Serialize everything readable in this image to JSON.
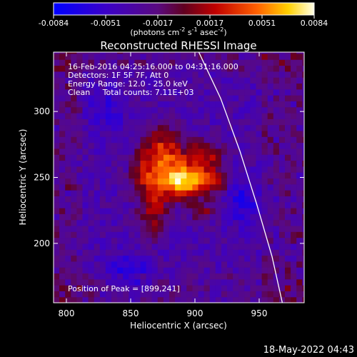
{
  "chart_data": {
    "type": "heatmap",
    "title": "Reconstructed RHESSI Image",
    "xlabel": "Heliocentric X (arcsec)",
    "ylabel": "Heliocentric Y (arcsec)",
    "xlim": [
      790,
      985
    ],
    "ylim": [
      155,
      345
    ],
    "xticks": [
      800,
      850,
      900,
      950
    ],
    "yticks": [
      200,
      250,
      300
    ],
    "colorbar": {
      "ticks": [
        "-0.0084",
        "-0.0051",
        "-0.0017",
        "0.0017",
        "0.0051",
        "0.0084"
      ],
      "unit_base": "(photons cm",
      "unit_exp1": "-2",
      "unit_mid": " s",
      "unit_exp2": "-1",
      "unit_mid2": " asec",
      "unit_exp3": "-2",
      "unit_end": ")",
      "range": [
        -0.0084,
        0.0084
      ]
    },
    "info_lines": [
      "16-Feb-2016 04:25:16.000 to 04:31:16.000",
      "Detectors: 1F 5F 7F, Att 0",
      "Energy Range: 12.0 - 25.0 keV",
      "Clean     Total counts: 7.11E+03"
    ],
    "peak_label": "Position of Peak = [899,241]",
    "peak": [
      899,
      241
    ],
    "limb_curve": [
      [
        903,
        345
      ],
      [
        920,
        310
      ],
      [
        935,
        270
      ],
      [
        948,
        230
      ],
      [
        960,
        190
      ],
      [
        968,
        155
      ]
    ],
    "grid_step_arcsec": 4.5
  },
  "footer": {
    "date": "18-May-2022 04:43"
  },
  "colors": {
    "background": "#000000",
    "text": "#ffffff",
    "limb": "#ffffff"
  }
}
